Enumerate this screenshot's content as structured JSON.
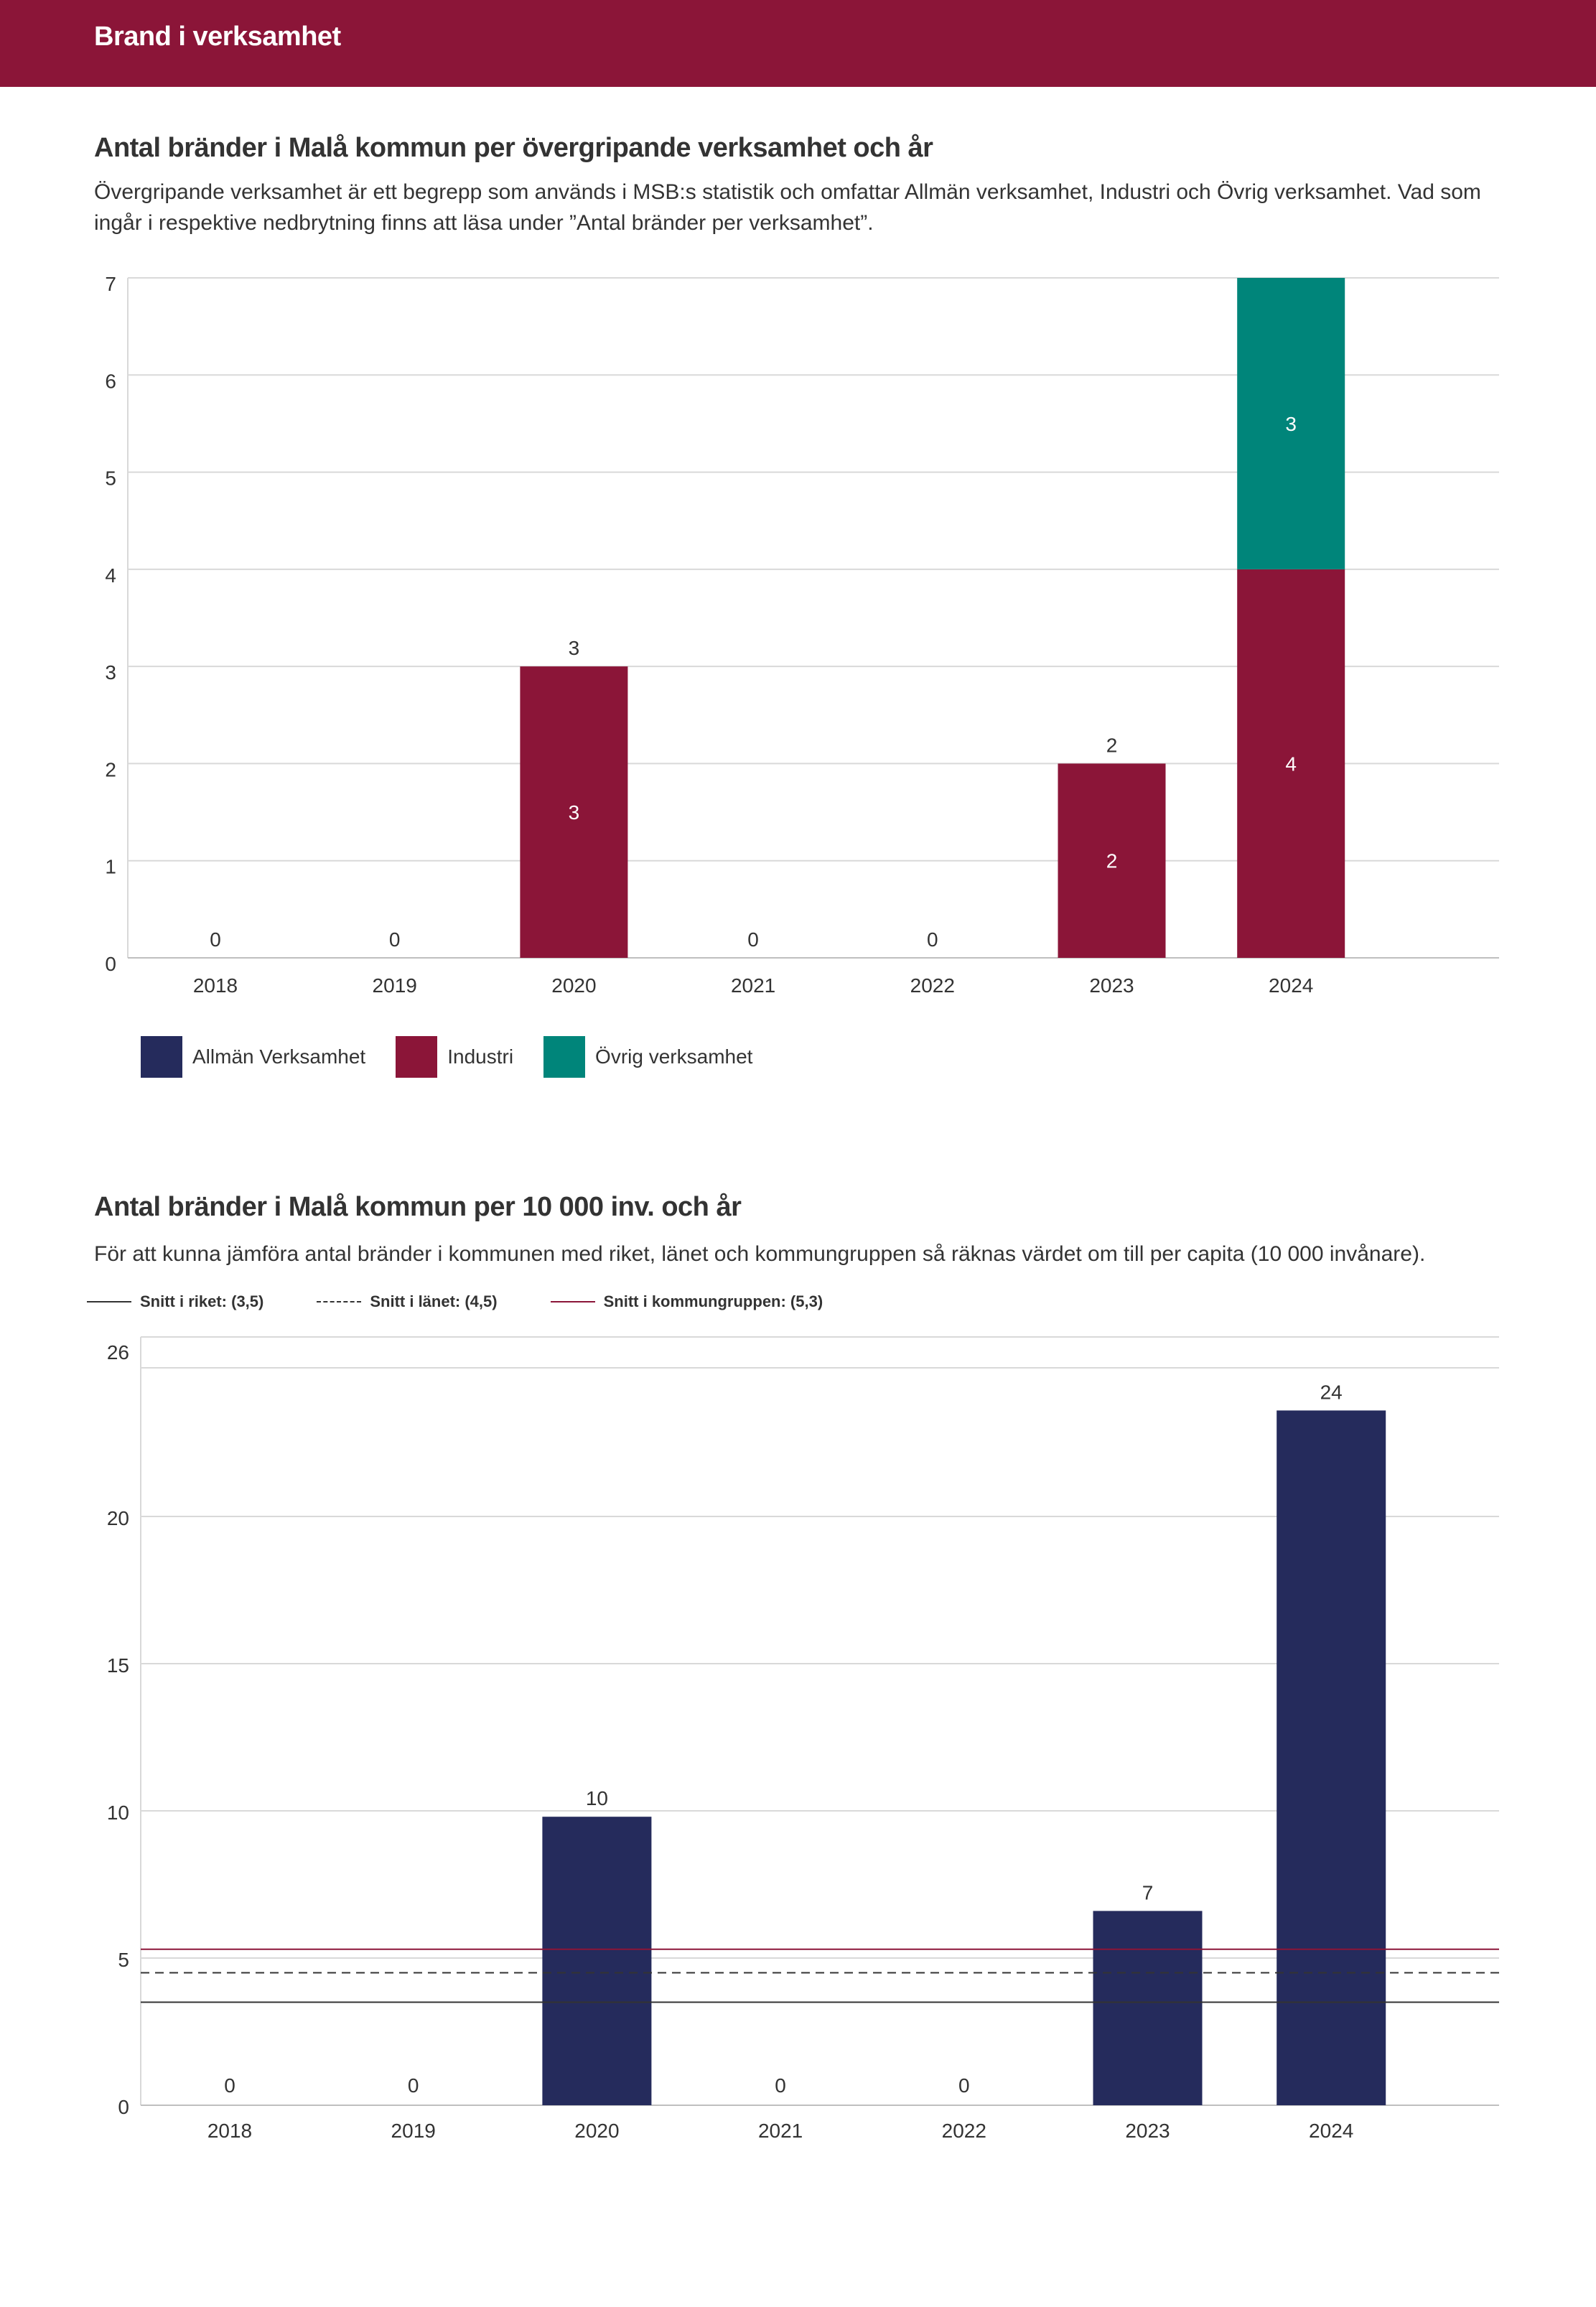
{
  "header": {
    "title": "Brand i verksamhet",
    "color": "#8b1538"
  },
  "section1": {
    "title": "Antal bränder i Malå kommun per övergripande verksamhet och år",
    "description": "Övergripande verksamhet är ett begrepp som används i MSB:s statistik och omfattar Allmän verksamhet, Industri och Övrig verksamhet. Vad som ingår i respektive nedbrytning finns att läsa under ”Antal bränder per verksamhet”."
  },
  "section2": {
    "title": "Antal bränder i Malå kommun per 10 000 inv. och år",
    "description": "För att kunna jämföra antal bränder i kommunen med riket, länet och kommungruppen så räknas värdet om till per capita (10 000 invånare)."
  },
  "chart_data": [
    {
      "type": "bar",
      "stacked": true,
      "categories": [
        "2018",
        "2019",
        "2020",
        "2021",
        "2022",
        "2023",
        "2024"
      ],
      "series": [
        {
          "name": "Allmän Verksamhet",
          "color": "#252b5c",
          "values": [
            0,
            0,
            0,
            0,
            0,
            0,
            0
          ]
        },
        {
          "name": "Industri",
          "color": "#8b1538",
          "values": [
            0,
            0,
            3,
            0,
            0,
            2,
            4
          ]
        },
        {
          "name": "Övrig verksamhet",
          "color": "#00857a",
          "values": [
            0,
            0,
            0,
            0,
            0,
            0,
            3
          ]
        }
      ],
      "totals": [
        0,
        0,
        3,
        0,
        0,
        2,
        7
      ],
      "total_labels": [
        "0",
        "0",
        "3",
        "0",
        "0",
        "2",
        ""
      ],
      "ylim": [
        0,
        7
      ],
      "yticks": [
        0,
        1,
        2,
        3,
        4,
        5,
        6,
        7
      ],
      "grid": true,
      "legend": "bottom"
    },
    {
      "type": "bar",
      "categories": [
        "2018",
        "2019",
        "2020",
        "2021",
        "2022",
        "2023",
        "2024"
      ],
      "values": [
        0,
        0,
        9.8,
        0,
        0,
        6.6,
        23.6
      ],
      "labels": [
        "0",
        "0",
        "10",
        "0",
        "0",
        "7",
        "24"
      ],
      "color": "#252b5c",
      "ylim": [
        0,
        25
      ],
      "yticks": [
        0,
        5,
        10,
        15,
        20
      ],
      "ytick_labels": [
        "0",
        "5",
        "10",
        "15",
        "20"
      ],
      "extra_tick": {
        "value": 26,
        "label": "26"
      },
      "grid": true,
      "reference_lines": [
        {
          "label": "Snitt i riket: (3,5)",
          "value": 3.5,
          "style": "solid",
          "color": "#333333"
        },
        {
          "label": "Snitt i länet: (4,5)",
          "value": 4.5,
          "style": "dashed",
          "color": "#333333"
        },
        {
          "label": "Snitt i kommungruppen: (5,3)",
          "value": 5.3,
          "style": "solid",
          "color": "#8b1538"
        }
      ],
      "legend": "top-left"
    }
  ]
}
